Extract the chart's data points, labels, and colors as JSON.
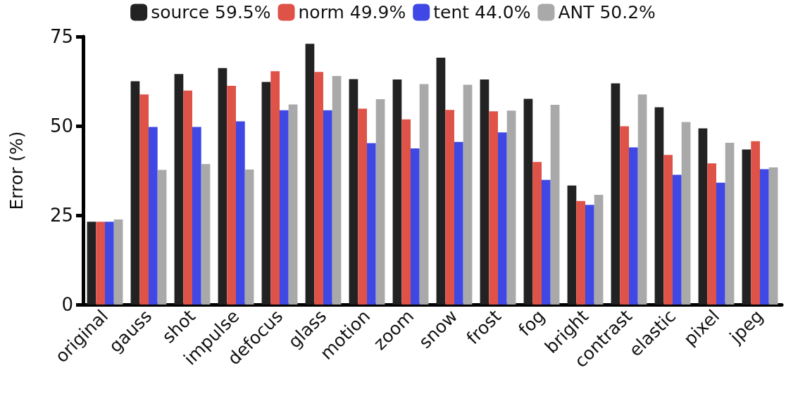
{
  "chart_data": {
    "type": "bar",
    "ylabel": "Error (%)",
    "categories": [
      "original",
      "gauss",
      "shot",
      "impulse",
      "defocus",
      "glass",
      "motion",
      "zoom",
      "snow",
      "frost",
      "fog",
      "bright",
      "contrast",
      "elastic",
      "pixel",
      "jpeg"
    ],
    "series": [
      {
        "name": "source 59.5%",
        "color": "#222222",
        "values": [
          23.2,
          62.5,
          64.5,
          66.2,
          62.3,
          73.0,
          63.1,
          63.0,
          69.1,
          63.0,
          57.6,
          33.3,
          61.9,
          55.2,
          49.3,
          43.4
        ]
      },
      {
        "name": "norm 49.9%",
        "color": "#de5248",
        "values": [
          23.2,
          58.8,
          59.9,
          61.2,
          65.3,
          65.1,
          54.8,
          51.8,
          54.5,
          54.1,
          39.9,
          29.0,
          49.9,
          41.9,
          39.5,
          45.7
        ]
      },
      {
        "name": "tent 44.0%",
        "color": "#3f48e4",
        "values": [
          23.2,
          49.7,
          49.7,
          51.3,
          54.4,
          54.4,
          45.2,
          43.7,
          45.5,
          48.2,
          34.9,
          27.9,
          44.0,
          36.3,
          34.1,
          37.9
        ]
      },
      {
        "name": "ANT 50.2%",
        "color": "#a9a9a9",
        "values": [
          23.8,
          37.7,
          39.3,
          37.8,
          56.0,
          64.0,
          57.5,
          61.7,
          61.5,
          54.3,
          55.9,
          30.7,
          58.8,
          51.1,
          45.3,
          38.4
        ]
      }
    ],
    "ylim": [
      0,
      75
    ],
    "yticks": [
      0,
      25,
      50,
      75
    ],
    "grid": false,
    "legend": "top"
  }
}
